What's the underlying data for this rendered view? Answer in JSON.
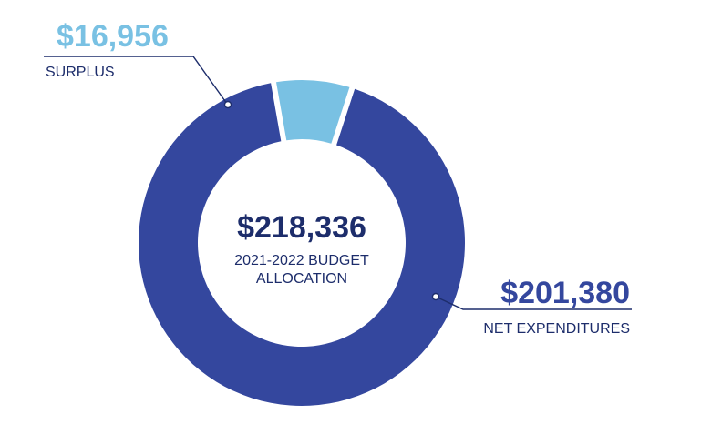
{
  "chart_data": {
    "type": "pie",
    "donut": true,
    "total_label": "$218,336",
    "center_caption": [
      "2021-2022 BUDGET",
      "ALLOCATION"
    ],
    "slices": [
      {
        "name": "SURPLUS",
        "label": "$16,956",
        "value": 16956,
        "color": "#79c1e3"
      },
      {
        "name": "NET EXPENDITURES",
        "label": "$201,380",
        "value": 201380,
        "color": "#34479e"
      }
    ],
    "colors": {
      "total_text": "#1d2d6b",
      "surplus_text": "#79c1e3",
      "expenditures_text": "#34479e",
      "caption_text": "#1d2d6b",
      "leader_line": "#1d2d6b"
    }
  }
}
